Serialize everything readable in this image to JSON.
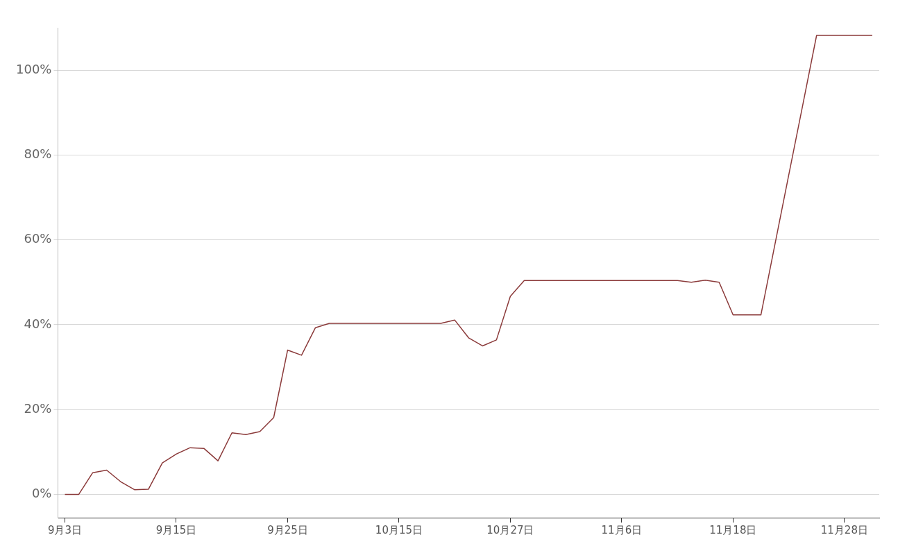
{
  "chart_data": {
    "type": "line",
    "categories": [
      "9月3日",
      null,
      null,
      null,
      null,
      null,
      null,
      null,
      "9月15日",
      null,
      null,
      null,
      null,
      null,
      null,
      null,
      "9月25日",
      null,
      null,
      null,
      null,
      null,
      null,
      null,
      "10月15日",
      null,
      null,
      null,
      null,
      null,
      null,
      null,
      "10月27日",
      null,
      null,
      null,
      null,
      null,
      null,
      null,
      "11月6日",
      null,
      null,
      null,
      null,
      null,
      null,
      null,
      "11月18日",
      null,
      null,
      null,
      null,
      null,
      null,
      null,
      "11月28日",
      null,
      null
    ],
    "series": [
      {
        "color": "#8b3a3a",
        "values": [
          0,
          0,
          5.1,
          5.7,
          3.0,
          1.1,
          1.2,
          7.4,
          9.5,
          11.0,
          10.8,
          7.9,
          14.5,
          14.1,
          14.8,
          18.1,
          34.0,
          32.8,
          39.3,
          40.3,
          40.3,
          40.3,
          40.3,
          40.3,
          40.3,
          40.3,
          40.3,
          40.3,
          41.1,
          36.9,
          35.0,
          36.4,
          46.7,
          50.4,
          50.4,
          50.4,
          50.4,
          50.4,
          50.4,
          50.4,
          50.4,
          50.4,
          50.4,
          50.4,
          50.4,
          50.0,
          50.5,
          50.0,
          42.3,
          42.3,
          42.3,
          58.8,
          75.3,
          91.7,
          108.2,
          108.2,
          108.2,
          108.2,
          108.2
        ]
      }
    ],
    "yticks": [
      {
        "value": 0,
        "label": "0%"
      },
      {
        "value": 20,
        "label": "20%"
      },
      {
        "value": 40,
        "label": "40%"
      },
      {
        "value": 60,
        "label": "60%"
      },
      {
        "value": 80,
        "label": "80%"
      },
      {
        "value": 100,
        "label": "100%"
      }
    ],
    "ylim": [
      -5.5,
      110
    ],
    "grid": "y",
    "legend": false,
    "marker": "none",
    "line_style": "solid"
  }
}
